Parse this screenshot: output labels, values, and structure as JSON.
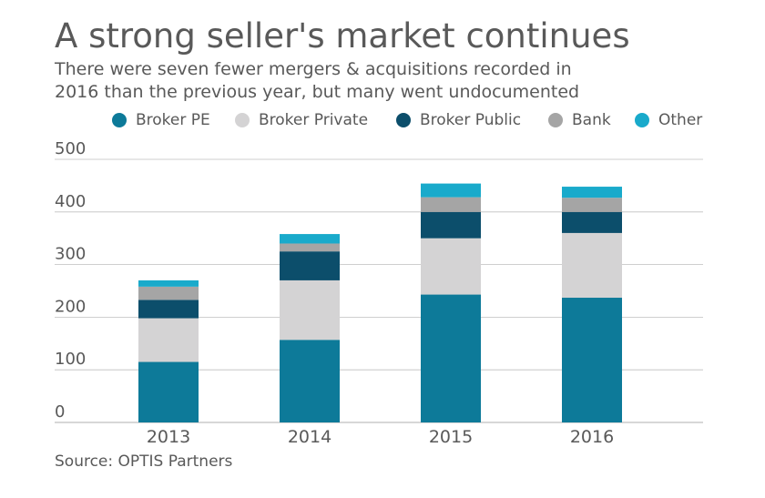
{
  "title": "A strong seller's market continues",
  "subtitle_lines": [
    "There were seven fewer mergers & acquisitions recorded in",
    "2016 than the previous year, but many went undocumented"
  ],
  "source": "Source: OPTIS Partners",
  "colors": {
    "broker_pe": "#0d7a99",
    "broker_private": "#d4d3d4",
    "broker_public": "#0c4e6b",
    "bank": "#a5a5a5",
    "other": "#19aacb",
    "grid": "#bfbfbf",
    "text": "#595959"
  },
  "chart_data": {
    "type": "bar",
    "stacked": true,
    "categories": [
      "2013",
      "2014",
      "2015",
      "2016"
    ],
    "series": [
      {
        "name": "Broker PE",
        "color": "#0d7a99",
        "values": [
          115,
          157,
          243,
          237
        ]
      },
      {
        "name": "Broker Private",
        "color": "#d4d3d4",
        "values": [
          83,
          113,
          107,
          123
        ]
      },
      {
        "name": "Broker Public",
        "color": "#0c4e6b",
        "values": [
          35,
          55,
          50,
          40
        ]
      },
      {
        "name": "Bank",
        "color": "#a5a5a5",
        "values": [
          25,
          15,
          28,
          27
        ]
      },
      {
        "name": "Other",
        "color": "#19aacb",
        "values": [
          12,
          18,
          26,
          21
        ]
      }
    ],
    "ylim": [
      0,
      500
    ],
    "yticks": [
      "0",
      "100",
      "200",
      "300",
      "400",
      "500"
    ],
    "grid": true,
    "legend_position": "top",
    "title": "A strong seller's market continues",
    "xlabel": "",
    "ylabel": ""
  }
}
